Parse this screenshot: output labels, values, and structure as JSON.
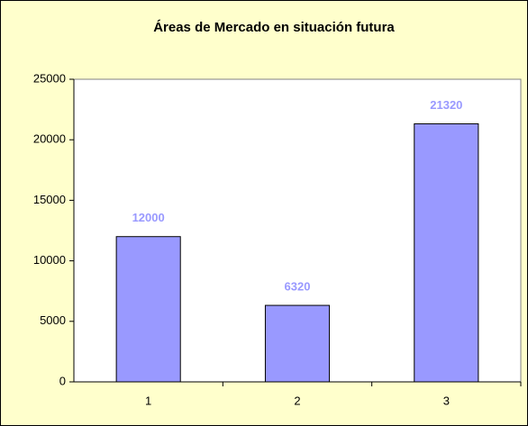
{
  "chart_data": {
    "type": "bar",
    "title": "Áreas de Mercado en situación futura",
    "categories": [
      "1",
      "2",
      "3"
    ],
    "values": [
      12000,
      6320,
      21320
    ],
    "color": "#9999ff",
    "label_color": "#9999ff",
    "ylim": [
      0,
      25000
    ],
    "yticks": [
      0,
      5000,
      10000,
      15000,
      20000,
      25000
    ],
    "grid": false
  }
}
